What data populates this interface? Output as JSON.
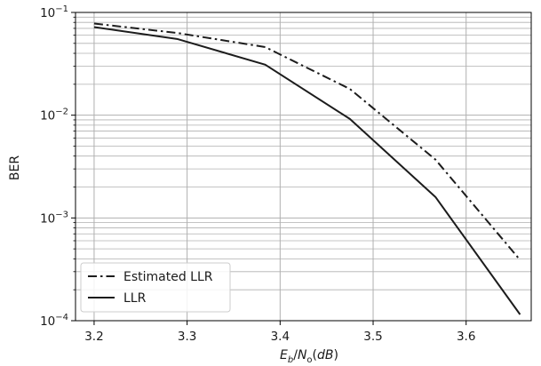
{
  "chart_data": {
    "type": "line",
    "title": "",
    "xlabel": "E_b/N_o(dB)",
    "ylabel": "BER",
    "x_ticks": [
      "3.2",
      "3.3",
      "3.4",
      "3.5",
      "3.6"
    ],
    "y_scale": "log",
    "xlim": [
      3.18,
      3.67
    ],
    "ylim": [
      0.0001,
      0.1
    ],
    "y_ticks": [
      {
        "value": 0.1,
        "mantissa": "10",
        "exponent": "−1"
      },
      {
        "value": 0.01,
        "mantissa": "10",
        "exponent": "−2"
      },
      {
        "value": 0.001,
        "mantissa": "10",
        "exponent": "−3"
      },
      {
        "value": 0.0001,
        "mantissa": "10",
        "exponent": "−4"
      }
    ],
    "grid": true,
    "legend_position": "lower-left",
    "series": [
      {
        "name": "Estimated LLR",
        "style": "dashdot",
        "color": "#1c1c1c",
        "x": [
          3.2,
          3.29,
          3.384,
          3.475,
          3.567,
          3.658
        ],
        "y": [
          0.078,
          0.063,
          0.046,
          0.018,
          0.0037,
          0.00039
        ]
      },
      {
        "name": "LLR",
        "style": "solid",
        "color": "#1c1c1c",
        "x": [
          3.2,
          3.29,
          3.384,
          3.475,
          3.567,
          3.658
        ],
        "y": [
          0.072,
          0.055,
          0.031,
          0.0092,
          0.0016,
          0.000115
        ]
      }
    ]
  }
}
